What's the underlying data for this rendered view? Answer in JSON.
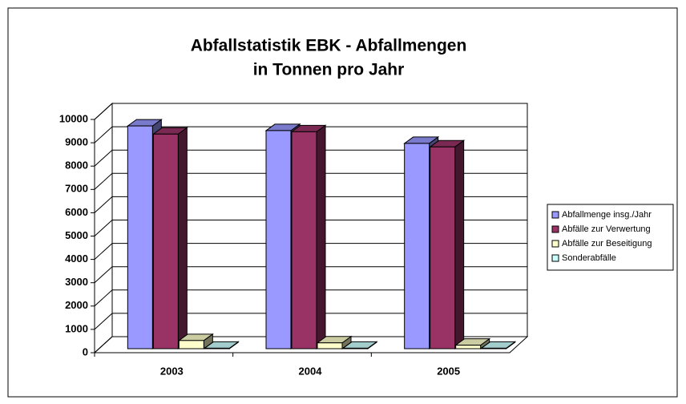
{
  "chart_data": {
    "type": "bar3d",
    "title": [
      "Abfallstatistik EBK - Abfallmengen",
      "in Tonnen pro Jahr"
    ],
    "categories": [
      "2003",
      "2004",
      "2005"
    ],
    "series": [
      {
        "name": "Abfallmenge insg./Jahr",
        "color": "#9999ff",
        "values": [
          9550,
          9350,
          8800
        ]
      },
      {
        "name": "Abfälle zur Verwertung",
        "color": "#993366",
        "values": [
          9200,
          9300,
          8650
        ]
      },
      {
        "name": "Abfälle zur Beseitigung",
        "color": "#ffffcc",
        "values": [
          350,
          250,
          150
        ]
      },
      {
        "name": "Sonderabfälle",
        "color": "#ccffff",
        "values": [
          20,
          20,
          20
        ]
      }
    ],
    "ylim": [
      0,
      10000
    ],
    "yticks": [
      0,
      1000,
      2000,
      3000,
      4000,
      5000,
      6000,
      7000,
      8000,
      9000,
      10000
    ],
    "grid": true,
    "legend": "right"
  }
}
